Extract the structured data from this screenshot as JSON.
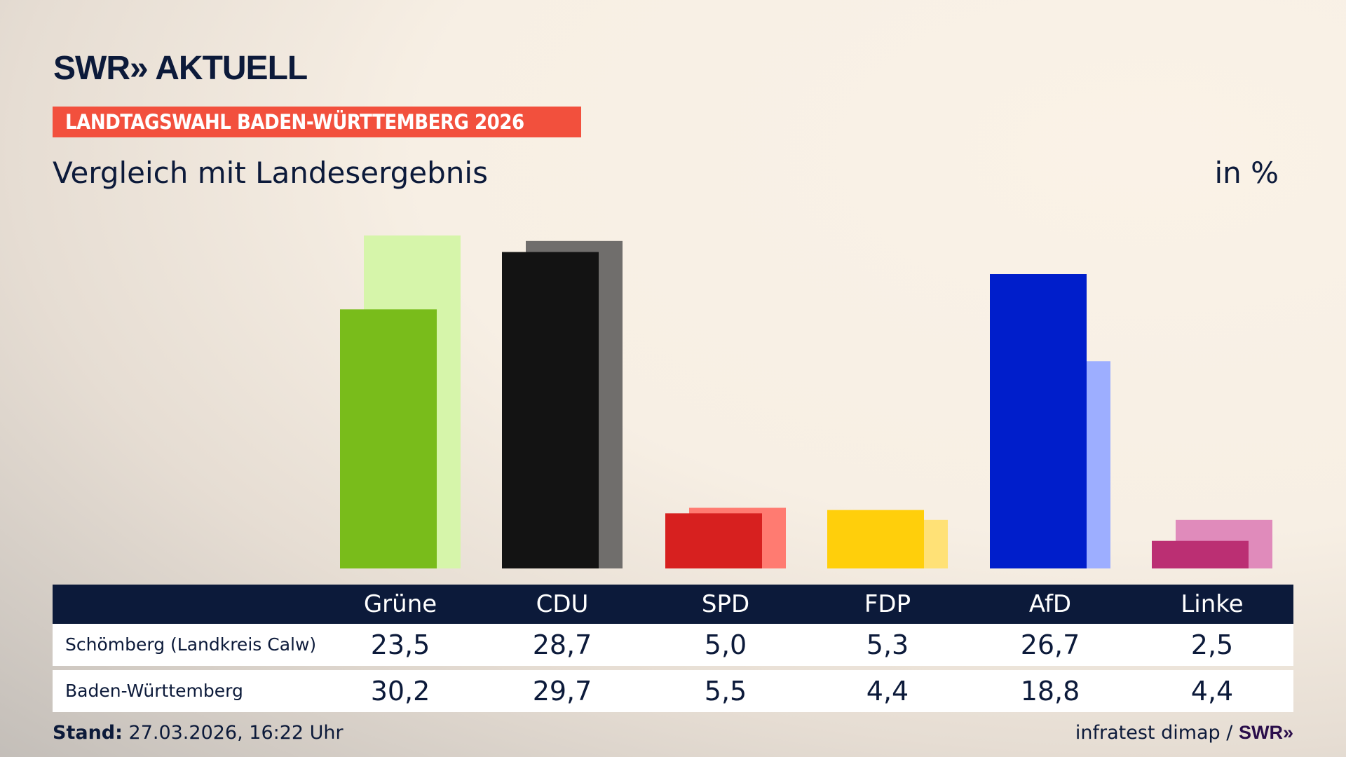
{
  "header": {
    "logo": "SWR» AKTUELL",
    "banner": "LANDTAGSWAHL BADEN-WÜRTTEMBERG 2026",
    "subtitle": "Vergleich mit Landesergebnis",
    "unit": "in %"
  },
  "chart_data": {
    "type": "bar",
    "categories": [
      "Grüne",
      "CDU",
      "SPD",
      "FDP",
      "AfD",
      "Linke"
    ],
    "series": [
      {
        "name": "Schömberg (Landkreis Calw)",
        "values": [
          23.5,
          28.7,
          5.0,
          5.3,
          26.7,
          2.5
        ],
        "labels": [
          "23,5",
          "28,7",
          "5,0",
          "5,3",
          "26,7",
          "2,5"
        ]
      },
      {
        "name": "Baden-Württemberg",
        "values": [
          30.2,
          29.7,
          5.5,
          4.4,
          18.8,
          4.4
        ],
        "labels": [
          "30,2",
          "29,7",
          "5,5",
          "4,4",
          "18,8",
          "4,4"
        ]
      }
    ],
    "colors_primary": [
      "#79bc1b",
      "#131313",
      "#d7201f",
      "#ffcf0b",
      "#001ecb",
      "#bb2f73"
    ],
    "colors_secondary": [
      "#d6f5aa",
      "#706e6c",
      "#ff7b71",
      "#ffe176",
      "#9daeff",
      "#e08bbb"
    ],
    "ylim": [
      0,
      30.2
    ],
    "grid": false
  },
  "footer": {
    "stand_label": "Stand:",
    "stand_value": "27.03.2026, 16:22 Uhr",
    "source": "infratest dimap /",
    "source_logo": "SWR»"
  }
}
